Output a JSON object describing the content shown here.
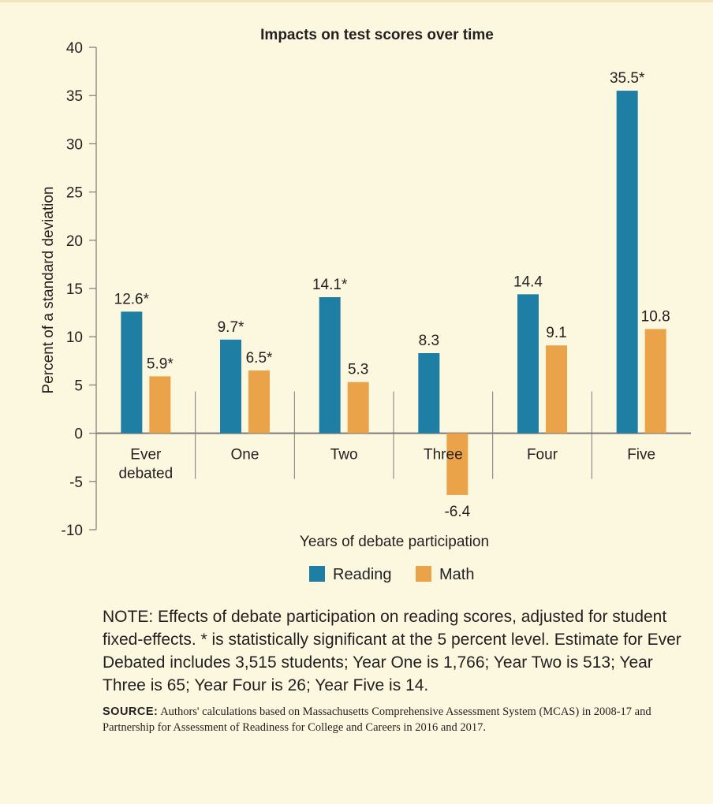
{
  "colors": {
    "background": "#fcf8df",
    "reading": "#1f7ea3",
    "math": "#eba34a",
    "axis": "#7a7a7a",
    "text": "#231f20"
  },
  "note": "NOTE: Effects of debate participation on reading scores, adjusted for student fixed-effects. * is statistically significant at the 5 percent level. Estimate for Ever Debated includes 3,515 students; Year One is 1,766; Year Two is 513; Year Three is 65; Year Four is 26; Year Five is 14.",
  "source": {
    "label": "SOURCE:",
    "text": "Authors' calculations based on Massachusetts Comprehensive Assessment System (MCAS) in 2008-17 and Partnership for Assessment of Readiness for College and Careers in 2016 and 2017."
  },
  "chart_data": {
    "type": "bar",
    "title": "Impacts on test scores over time",
    "xlabel": "Years of debate participation",
    "ylabel": "Percent of a standard deviation",
    "ylim": [
      -10,
      40
    ],
    "yticks": [
      -10,
      -5,
      0,
      5,
      10,
      15,
      20,
      25,
      30,
      35,
      40
    ],
    "categories": [
      [
        "Ever",
        "debated"
      ],
      [
        "One"
      ],
      [
        "Two"
      ],
      [
        "Three"
      ],
      [
        "Four"
      ],
      [
        "Five"
      ]
    ],
    "series": [
      {
        "name": "Reading",
        "color": "#1f7ea3",
        "values": [
          12.6,
          9.7,
          14.1,
          8.3,
          14.4,
          35.5
        ],
        "labels": [
          "12.6*",
          "9.7*",
          "14.1*",
          "8.3",
          "14.4",
          "35.5*"
        ]
      },
      {
        "name": "Math",
        "color": "#eba34a",
        "values": [
          5.9,
          6.5,
          5.3,
          -6.4,
          9.1,
          10.8
        ],
        "labels": [
          "5.9*",
          "6.5*",
          "5.3",
          "-6.4",
          "9.1",
          "10.8"
        ]
      }
    ],
    "legend_position": "bottom",
    "grid": false
  }
}
